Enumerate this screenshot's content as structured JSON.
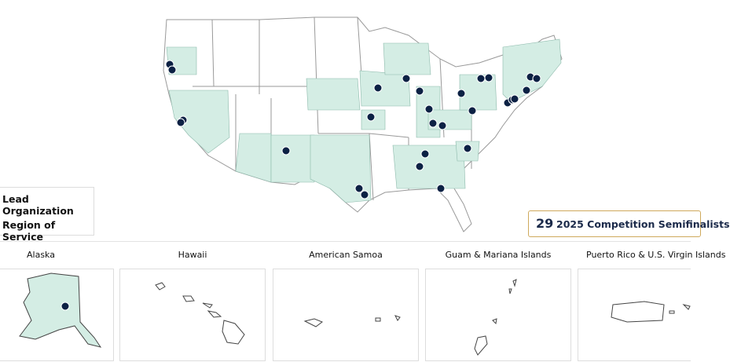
{
  "legend": {
    "items": [
      "Lead Organization",
      "Region of Service"
    ]
  },
  "counter": {
    "value": 29,
    "label": "2025 Competition Semifinalists"
  },
  "insets": [
    {
      "label": "Alaska"
    },
    {
      "label": "Hawaii"
    },
    {
      "label": "American Samoa"
    },
    {
      "label": "Guam & Mariana Islands"
    },
    {
      "label": "Puerto Rico & U.S. Virgin Islands"
    }
  ]
}
